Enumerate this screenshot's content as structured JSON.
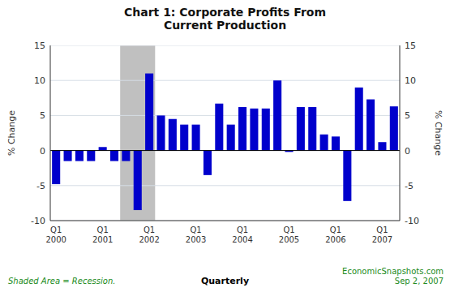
{
  "chart_data": {
    "type": "bar",
    "title": "Chart 1: Corporate Profits From\nCurrent Production",
    "ylabel": "% Change",
    "y2label": "% Change",
    "xlabel": "Quarterly",
    "annotations": [
      {
        "text": "Shaded Area = Recession.",
        "color": "#228B22"
      },
      {
        "text": "EconomicSnapshots.com\nSep 2, 2007",
        "color": "#228B22"
      }
    ],
    "categories": [
      "Q1\n2000",
      null,
      null,
      null,
      "Q1\n2001",
      null,
      null,
      null,
      "Q1\n2002",
      null,
      null,
      null,
      "Q1\n2003",
      null,
      null,
      null,
      "Q1\n2004",
      null,
      null,
      null,
      "Q1\n2005",
      null,
      null,
      null,
      "Q1\n2006",
      null,
      null,
      null,
      "Q1\n2007",
      null
    ],
    "values": [
      -4.8,
      -1.5,
      -1.5,
      -1.5,
      0.5,
      -1.5,
      -1.5,
      -8.5,
      11.0,
      5.0,
      4.5,
      3.7,
      3.7,
      -3.5,
      6.7,
      3.7,
      6.2,
      6.0,
      6.0,
      10.0,
      -0.2,
      6.2,
      6.2,
      2.3,
      2.0,
      -7.2,
      9.0,
      7.3,
      1.2,
      6.3
    ],
    "color": "#0000CC",
    "shade": {
      "from": 6,
      "to": 8,
      "color": "#C0C0C0"
    },
    "ylim": [
      -10,
      15
    ],
    "yticks": [
      -10,
      -5,
      0,
      5,
      10,
      15
    ],
    "y2lim": [
      -10,
      15
    ],
    "y2ticks": [
      -10,
      -5,
      0,
      5,
      10,
      15
    ],
    "grid": true
  }
}
